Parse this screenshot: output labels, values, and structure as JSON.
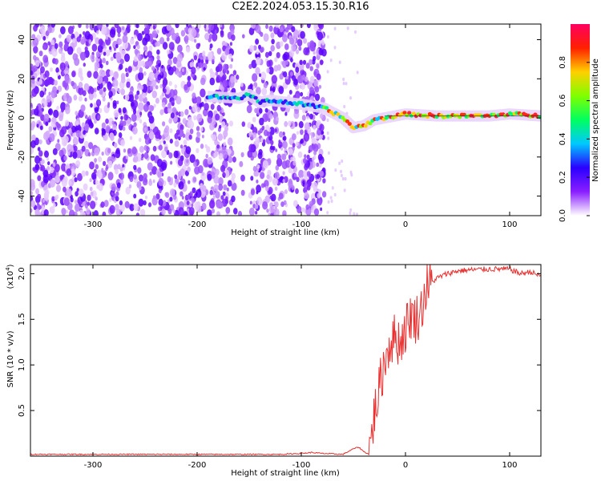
{
  "title": "C2E2.2024.053.15.30.R16",
  "chart_data": [
    {
      "type": "heatmap",
      "title": "C2E2.2024.053.15.30.R16",
      "xlabel": "Height of straight line (km)",
      "ylabel": "Frequency (Hz)",
      "xlim": [
        -360,
        130
      ],
      "ylim": [
        -50,
        48
      ],
      "xticks": [
        -300,
        -200,
        -100,
        0,
        100
      ],
      "yticks": [
        -40,
        -20,
        0,
        20,
        40
      ],
      "noise_region_x": [
        -360,
        -78
      ],
      "clear_gap_x": [
        -165,
        -150
      ],
      "signal_track": [
        {
          "x": -190,
          "f": 11
        },
        {
          "x": -160,
          "f": 10
        },
        {
          "x": -150,
          "f": 12
        },
        {
          "x": -140,
          "f": 8
        },
        {
          "x": -130,
          "f": 9
        },
        {
          "x": -115,
          "f": 8
        },
        {
          "x": -100,
          "f": 7
        },
        {
          "x": -78,
          "f": 5
        },
        {
          "x": -60,
          "f": 0
        },
        {
          "x": -50,
          "f": -5
        },
        {
          "x": -40,
          "f": -4
        },
        {
          "x": -30,
          "f": -1
        },
        {
          "x": -10,
          "f": 1
        },
        {
          "x": 0,
          "f": 2
        },
        {
          "x": 30,
          "f": 1
        },
        {
          "x": 80,
          "f": 1
        },
        {
          "x": 100,
          "f": 2
        },
        {
          "x": 130,
          "f": 1
        }
      ],
      "grid": false
    },
    {
      "type": "colorbar",
      "label": "Normalized spectral amplitude",
      "range": [
        0.0,
        1.0
      ],
      "ticks": [
        "0.0",
        "0.2",
        "0.4",
        "0.6",
        "0.8"
      ],
      "colormap": [
        "#ffffff",
        "#8a1fff",
        "#2a00ff",
        "#00c8ff",
        "#00ff60",
        "#80ff00",
        "#ffd000",
        "#ff2000",
        "#ff0060"
      ]
    },
    {
      "type": "line",
      "xlabel": "Height of straight line (km)",
      "ylabel": "SNR (10 * v/v)",
      "y_multiplier_label": "(x10",
      "y_multiplier_exp": "4",
      "y_multiplier_close": ")",
      "xlim": [
        -360,
        130
      ],
      "ylim": [
        0,
        2.1
      ],
      "xticks": [
        -300,
        -200,
        -100,
        0,
        100
      ],
      "yticks": [
        "0.5",
        "1.0",
        "1.5",
        "2.0"
      ],
      "series": [
        {
          "color": "#e83030",
          "x": [
            -360,
            -300,
            -200,
            -120,
            -100,
            -90,
            -80,
            -60,
            -50,
            -45,
            -40,
            -35,
            -30,
            -25,
            -20,
            -15,
            -10,
            -5,
            0,
            5,
            10,
            15,
            20,
            25,
            30,
            40,
            50,
            60,
            80,
            100,
            110,
            120,
            130
          ],
          "y": [
            0.02,
            0.02,
            0.02,
            0.02,
            0.03,
            0.04,
            0.03,
            0.02,
            0.08,
            0.1,
            0.05,
            0.02,
            0.45,
            0.75,
            1.05,
            1.25,
            1.3,
            1.25,
            1.4,
            1.55,
            1.5,
            1.6,
            1.85,
            1.9,
            1.95,
            2.0,
            2.03,
            2.04,
            2.05,
            2.05,
            2.0,
            2.02,
            1.97
          ]
        }
      ],
      "grid": false
    }
  ]
}
